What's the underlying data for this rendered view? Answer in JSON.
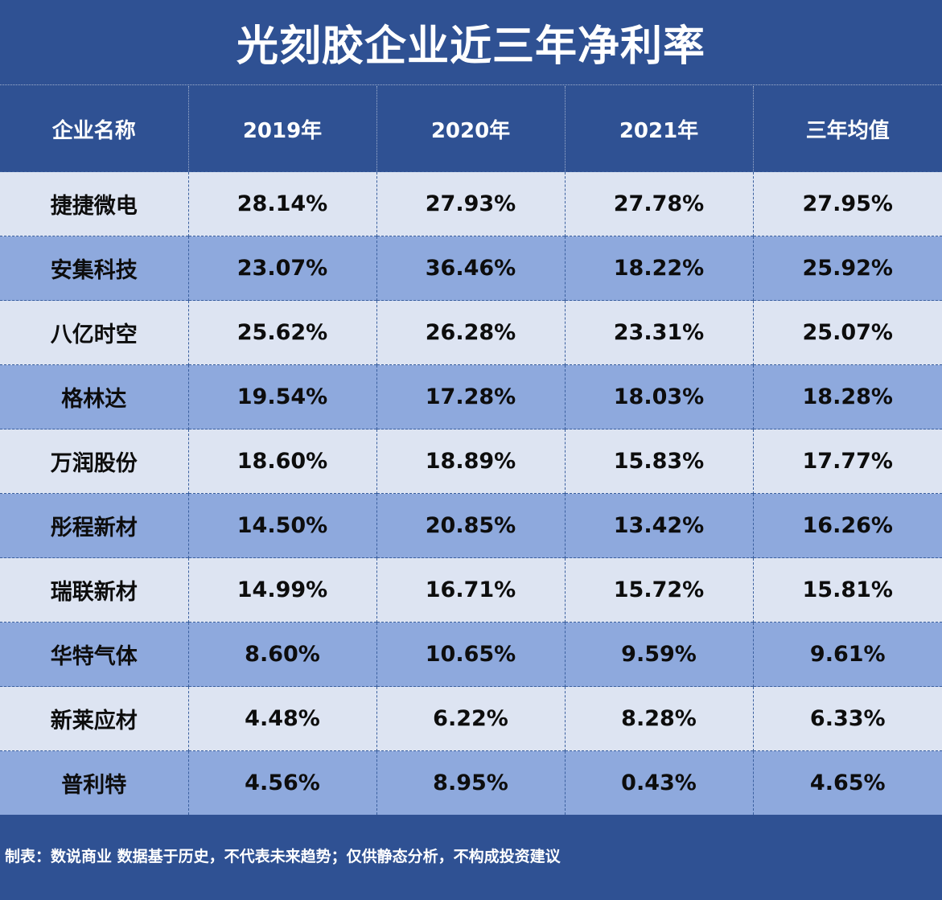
{
  "chart_data": {
    "type": "table",
    "title": "光刻胶企业近三年净利率",
    "columns": [
      "企业名称",
      "2019年",
      "2020年",
      "2021年",
      "三年均值"
    ],
    "rows": [
      [
        "捷捷微电",
        "28.14%",
        "27.93%",
        "27.78%",
        "27.95%"
      ],
      [
        "安集科技",
        "23.07%",
        "36.46%",
        "18.22%",
        "25.92%"
      ],
      [
        "八亿时空",
        "25.62%",
        "26.28%",
        "23.31%",
        "25.07%"
      ],
      [
        "格林达",
        "19.54%",
        "17.28%",
        "18.03%",
        "18.28%"
      ],
      [
        "万润股份",
        "18.60%",
        "18.89%",
        "15.83%",
        "17.77%"
      ],
      [
        "彤程新材",
        "14.50%",
        "20.85%",
        "13.42%",
        "16.26%"
      ],
      [
        "瑞联新材",
        "14.99%",
        "16.71%",
        "15.72%",
        "15.81%"
      ],
      [
        "华特气体",
        "8.60%",
        "10.65%",
        "9.59%",
        "9.61%"
      ],
      [
        "新莱应材",
        "4.48%",
        "6.22%",
        "8.28%",
        "6.33%"
      ],
      [
        "普利特",
        "4.56%",
        "8.95%",
        "0.43%",
        "4.65%"
      ]
    ]
  },
  "footer": {
    "note": "制表：数说商业 数据基于历史，不代表未来趋势；仅供静态分析，不构成投资建议"
  },
  "colors": {
    "background": "#2f5193",
    "header_text": "#ffffff",
    "row_light": "#dde4f2",
    "row_dark": "#8ea9dd",
    "cell_text": "#0d0d0d"
  }
}
